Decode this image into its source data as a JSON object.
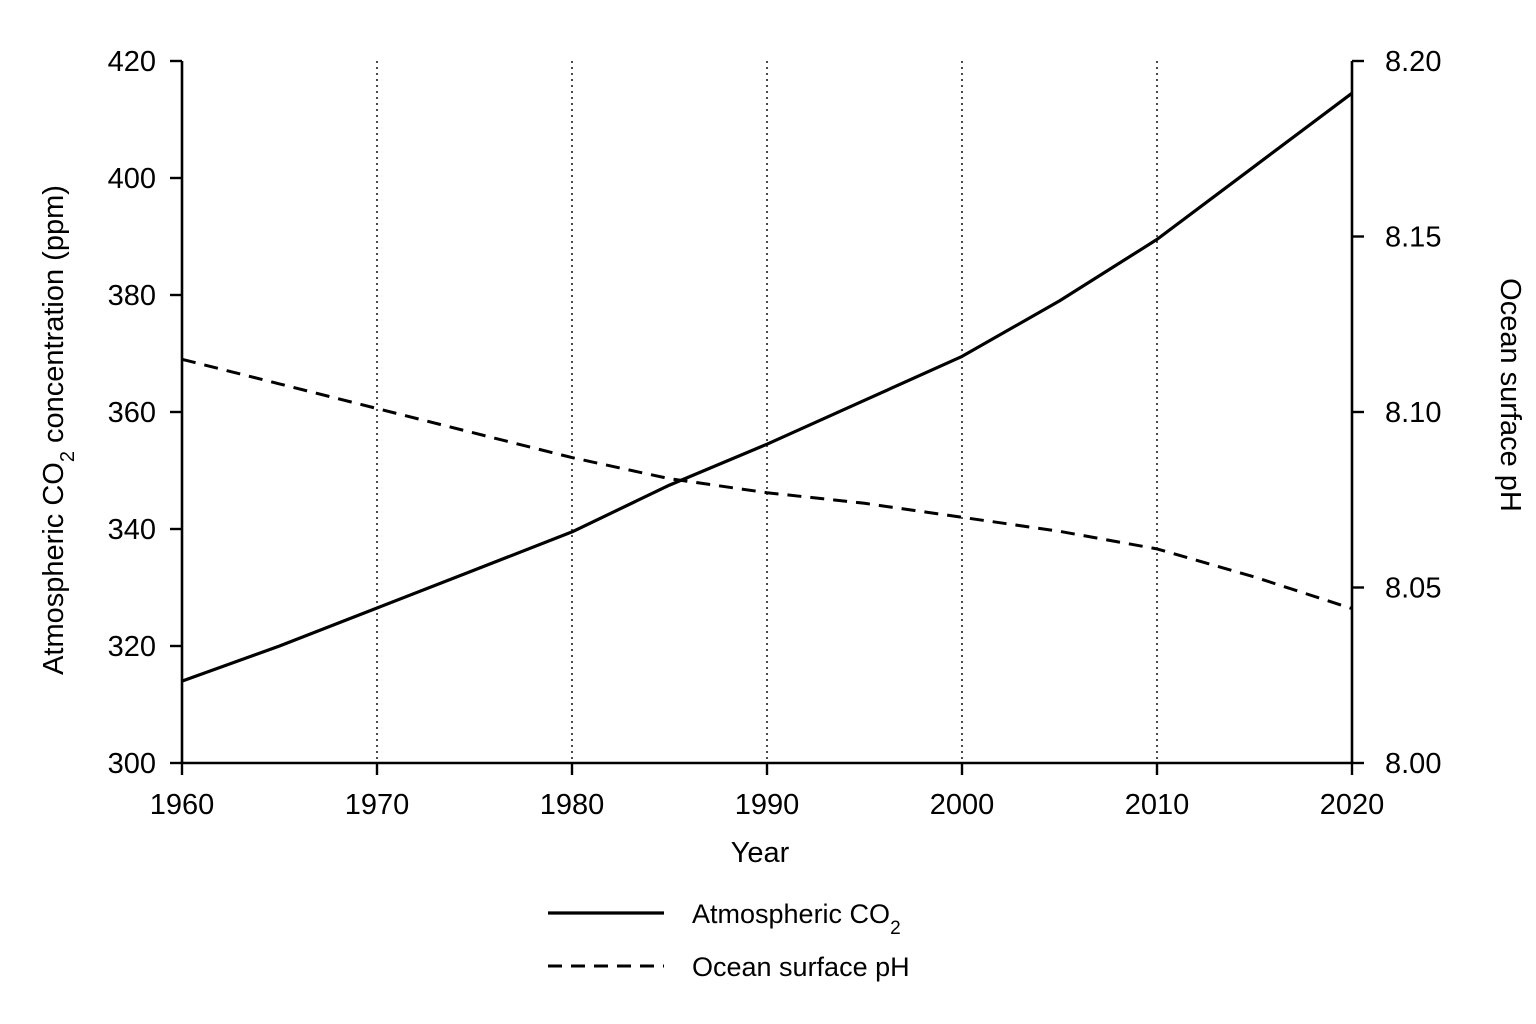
{
  "chart_data": {
    "type": "line",
    "xlabel": "Year",
    "ylabel_left": {
      "pre": "Atmospheric CO",
      "sub": "2",
      "post": " concentration (ppm)"
    },
    "ylabel_right": "Ocean surface pH",
    "xlim": [
      1960,
      2020
    ],
    "ylim_left": [
      300,
      420
    ],
    "ylim_right": [
      8.0,
      8.2
    ],
    "x_ticks": [
      1960,
      1970,
      1980,
      1990,
      2000,
      2010,
      2020
    ],
    "x_tick_labels": [
      "1960",
      "1970",
      "1980",
      "1990",
      "2000",
      "2010",
      "2020"
    ],
    "y_left_ticks": [
      300,
      320,
      340,
      360,
      380,
      400,
      420
    ],
    "y_left_tick_labels": [
      "300",
      "320",
      "340",
      "360",
      "380",
      "400",
      "420"
    ],
    "y_right_ticks": [
      8.0,
      8.05,
      8.1,
      8.15,
      8.2
    ],
    "y_right_tick_labels": [
      "8.00",
      "8.05",
      "8.10",
      "8.15",
      "8.20"
    ],
    "grid": "vertical dotted at x ticks 1970–2010",
    "legend_position": "bottom-center",
    "series": [
      {
        "name": {
          "pre": "Atmospheric CO",
          "sub": "2",
          "post": ""
        },
        "axis": "left",
        "style": "solid",
        "color": "#000000",
        "x": [
          1960,
          1965,
          1970,
          1975,
          1980,
          1985,
          1990,
          1995,
          2000,
          2005,
          2010,
          2015,
          2020
        ],
        "y": [
          314,
          320,
          326.5,
          333,
          339.5,
          347.5,
          354.5,
          362,
          369.5,
          379,
          389.5,
          402,
          414.5
        ]
      },
      {
        "name": {
          "pre": "Ocean surface pH",
          "sub": "",
          "post": ""
        },
        "axis": "right",
        "style": "dashed",
        "color": "#000000",
        "x": [
          1960,
          1965,
          1970,
          1975,
          1980,
          1985,
          1990,
          1995,
          2000,
          2005,
          2010,
          2015,
          2020
        ],
        "y": [
          8.115,
          8.108,
          8.101,
          8.094,
          8.087,
          8.081,
          8.077,
          8.074,
          8.07,
          8.066,
          8.061,
          8.053,
          8.044
        ]
      }
    ]
  }
}
